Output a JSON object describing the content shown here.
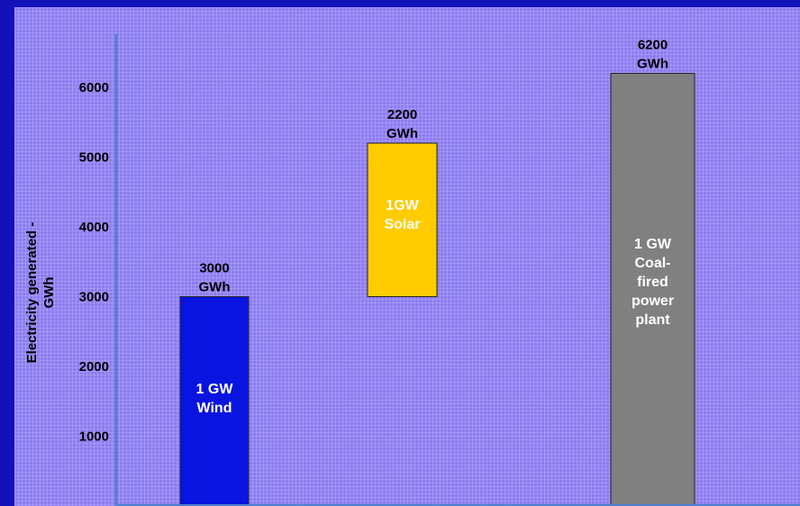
{
  "chart_data": {
    "type": "bar",
    "ylabel": "Electricity generated - GWh",
    "ylim": [
      0,
      6200
    ],
    "yticks": [
      1000,
      2000,
      3000,
      4000,
      5000,
      6000
    ],
    "grid": true,
    "bars": [
      {
        "label": [
          "1 GW",
          "Wind"
        ],
        "value_label": [
          "3000",
          "GWh"
        ],
        "base": 0,
        "top": 3000,
        "color": "#0a14e0",
        "label_color": "#ffffff"
      },
      {
        "label": [
          "1GW",
          "Solar"
        ],
        "value_label": [
          "2200",
          "GWh"
        ],
        "base": 3000,
        "top": 5200,
        "color": "#ffcc00",
        "label_color": "#ffffff"
      },
      {
        "label": [
          "1 GW",
          "Coal-",
          "fired",
          "power",
          "plant"
        ],
        "value_label": [
          "6200",
          "GWh"
        ],
        "base": 0,
        "top": 6200,
        "color": "#808080",
        "label_color": "#ffffff"
      }
    ]
  },
  "colors": {
    "frame": "#1212b8",
    "plot_background": "#8c7cf0",
    "grid": "#b3a8f8",
    "axis": "#4f7fd0"
  }
}
